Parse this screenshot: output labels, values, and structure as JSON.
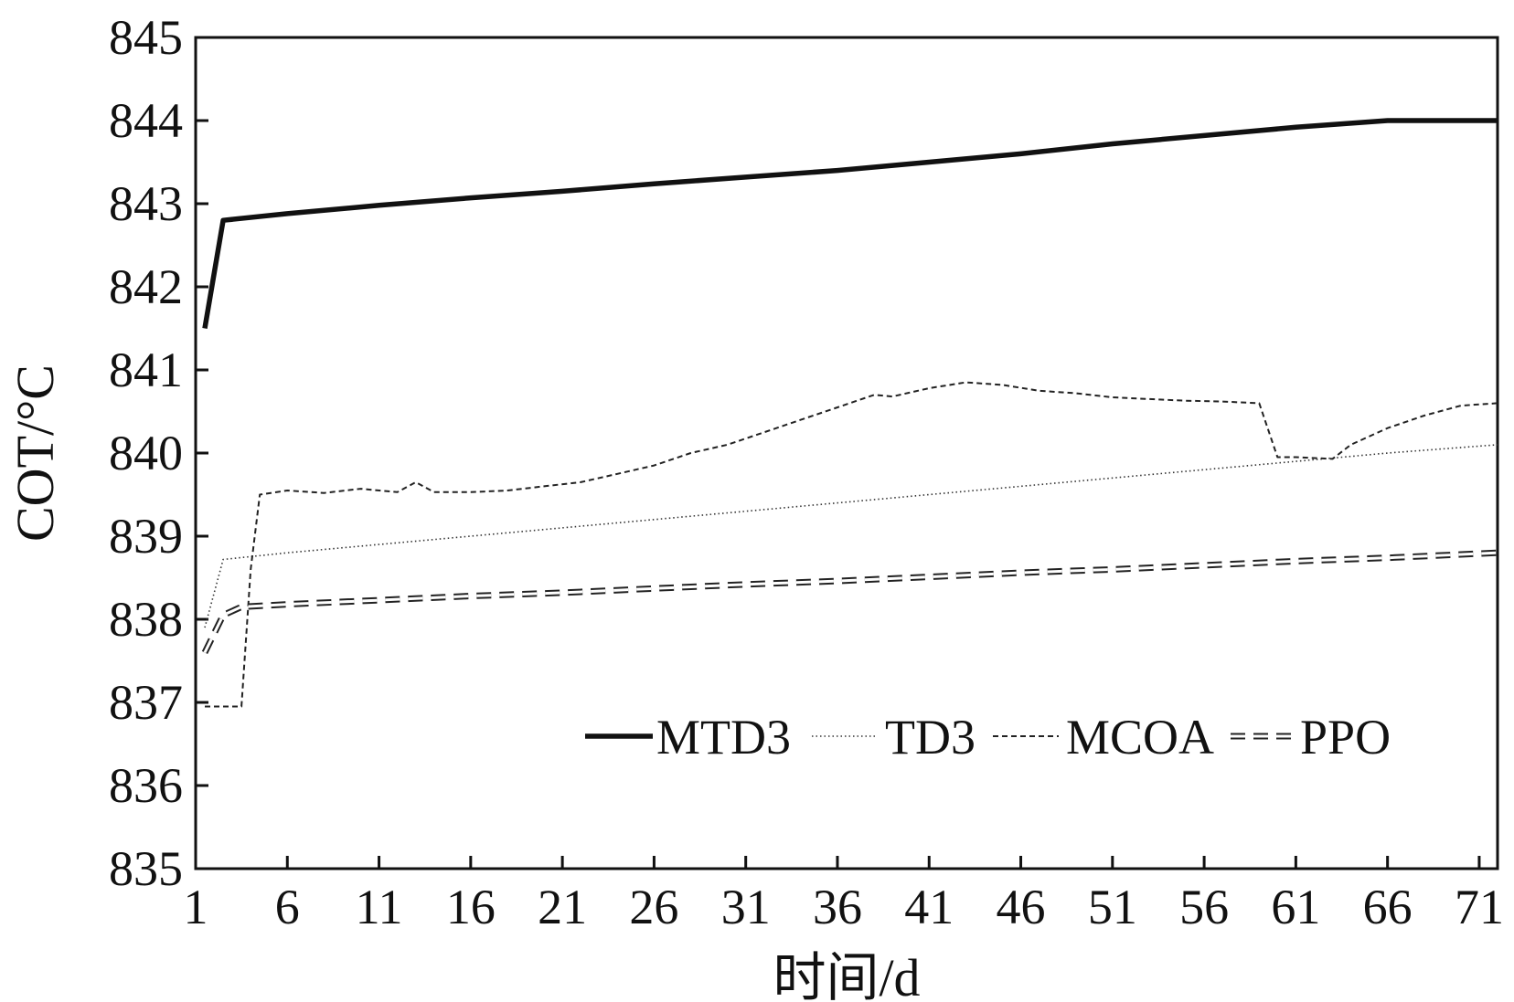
{
  "chart_data": {
    "type": "line",
    "title": "",
    "xlabel": "时间/d",
    "ylabel": "COT/°C",
    "xlim": [
      1,
      72
    ],
    "ylim": [
      835,
      845
    ],
    "x_ticks": [
      "1",
      "6",
      "11",
      "16",
      "21",
      "26",
      "31",
      "36",
      "41",
      "46",
      "51",
      "56",
      "61",
      "66",
      "71"
    ],
    "y_ticks": [
      "835",
      "836",
      "837",
      "838",
      "839",
      "840",
      "841",
      "842",
      "843",
      "844",
      "845"
    ],
    "legend_position": "bottom-right",
    "series": [
      {
        "name": "MTD3",
        "style": "solid-thick",
        "x": [
          1.5,
          2.5,
          6,
          11,
          16,
          21,
          26,
          31,
          36,
          41,
          46,
          51,
          56,
          61,
          66,
          67,
          72
        ],
        "y": [
          841.5,
          842.8,
          842.88,
          842.98,
          843.07,
          843.15,
          843.24,
          843.32,
          843.4,
          843.5,
          843.6,
          843.72,
          843.82,
          843.92,
          844.0,
          844.0,
          844.0
        ]
      },
      {
        "name": "TD3",
        "style": "dotted",
        "x": [
          1.5,
          2.5,
          6,
          11,
          16,
          21,
          26,
          31,
          36,
          41,
          46,
          51,
          56,
          61,
          66,
          72
        ],
        "y": [
          837.9,
          838.72,
          838.8,
          838.9,
          839.0,
          839.1,
          839.2,
          839.3,
          839.4,
          839.5,
          839.6,
          839.7,
          839.8,
          839.9,
          840.0,
          840.1
        ]
      },
      {
        "name": "MCOA",
        "style": "dashed",
        "x": [
          1.5,
          3.5,
          4,
          4.5,
          6,
          8,
          10,
          12,
          13,
          14,
          16,
          18,
          20,
          22,
          24,
          26,
          28,
          30,
          32,
          34,
          36,
          38,
          39,
          41,
          43,
          45,
          47,
          49,
          51,
          53,
          55,
          57,
          59,
          60,
          61,
          63,
          64,
          66,
          68,
          70,
          72
        ],
        "y": [
          836.95,
          836.95,
          838.6,
          839.5,
          839.55,
          839.52,
          839.57,
          839.53,
          839.65,
          839.53,
          839.53,
          839.55,
          839.6,
          839.65,
          839.75,
          839.85,
          840.0,
          840.1,
          840.25,
          840.4,
          840.55,
          840.7,
          840.68,
          840.78,
          840.85,
          840.82,
          840.75,
          840.72,
          840.67,
          840.65,
          840.63,
          840.62,
          840.6,
          839.95,
          839.95,
          839.93,
          840.1,
          840.3,
          840.45,
          840.57,
          840.6
        ]
      },
      {
        "name": "PPO",
        "style": "double-dashed",
        "x": [
          1.5,
          2.5,
          3.5,
          6,
          11,
          16,
          21,
          26,
          31,
          36,
          41,
          46,
          51,
          56,
          61,
          66,
          72
        ],
        "y": [
          837.6,
          838.05,
          838.15,
          838.18,
          838.23,
          838.28,
          838.32,
          838.37,
          838.42,
          838.46,
          838.51,
          838.56,
          838.6,
          838.65,
          838.7,
          838.74,
          838.8
        ]
      }
    ]
  }
}
